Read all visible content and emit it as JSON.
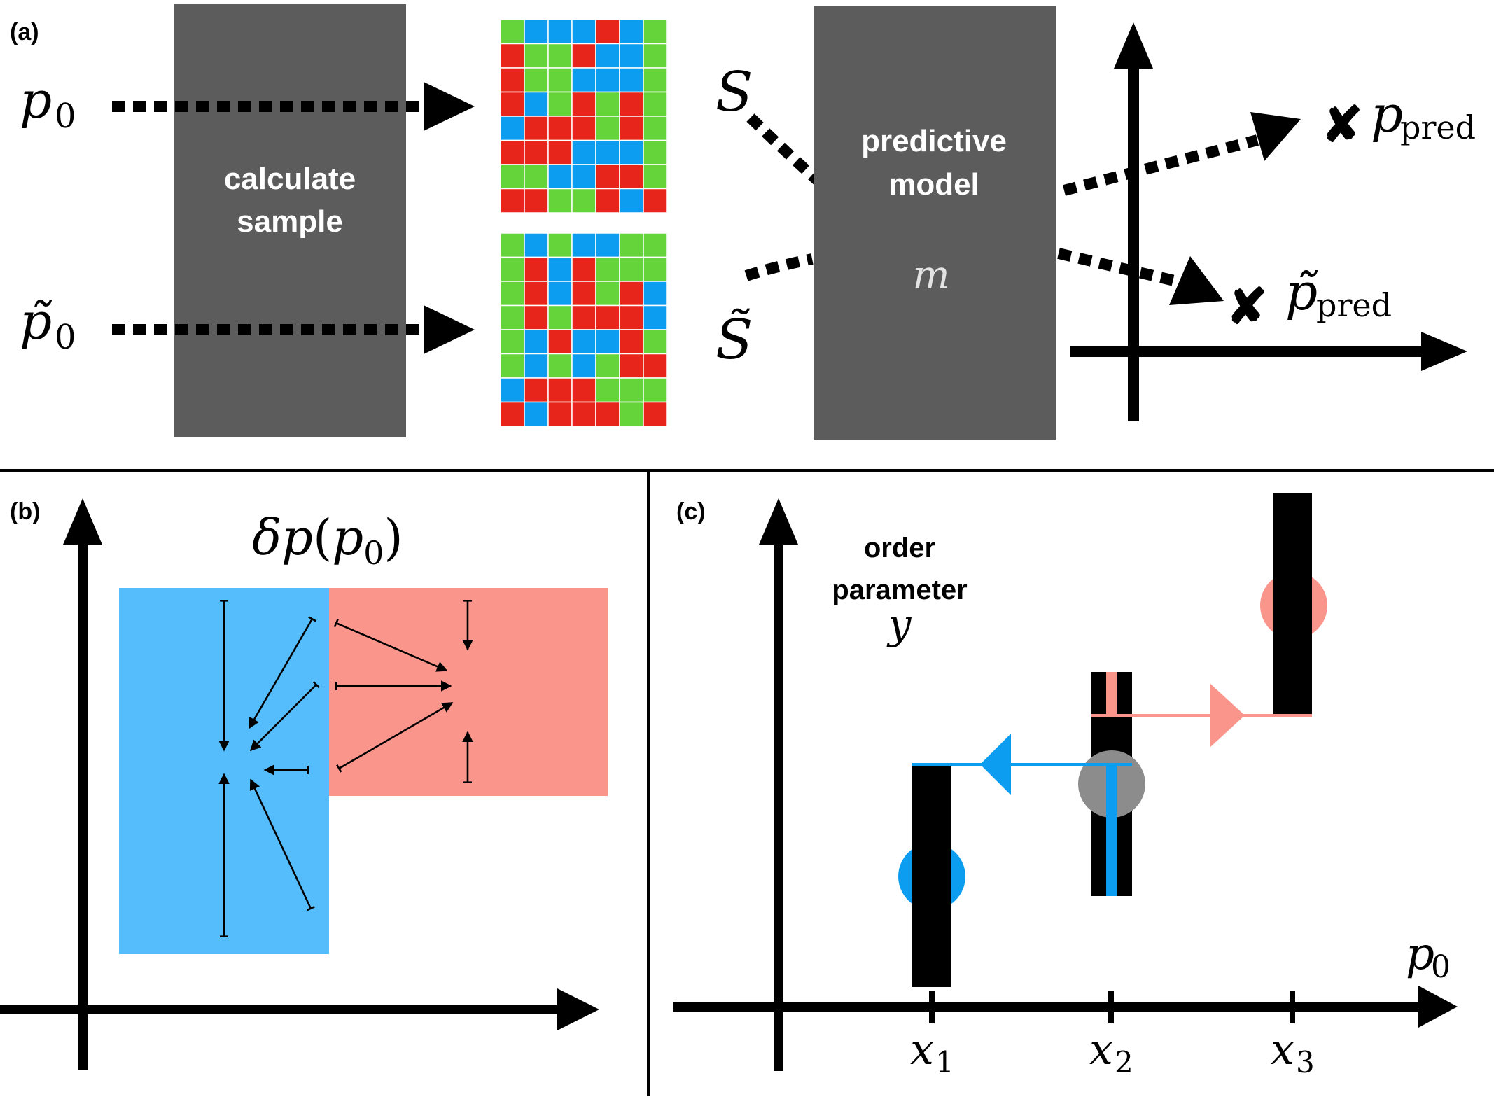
{
  "panels": {
    "a": {
      "tag": "(a)"
    },
    "b": {
      "tag": "(b)"
    },
    "c": {
      "tag": "(c)"
    }
  },
  "a": {
    "input_top": {
      "base": "p",
      "sub": "0"
    },
    "input_bottom": {
      "base": "p̃",
      "sub": "0"
    },
    "calc_box": {
      "line1": "calculate",
      "line2": "sample"
    },
    "sample_top_label": "S",
    "sample_bottom_label": "S̃",
    "model_box": {
      "line1": "predictive",
      "line2": "model",
      "symbol": "m"
    },
    "pred_top": {
      "base": "p",
      "sub": "pred"
    },
    "pred_bottom": {
      "base": "p̃",
      "sub": "pred"
    },
    "pred_marker": "✘",
    "colors": {
      "red": "#e8251b",
      "green": "#64d43a",
      "blue": "#0c9cf0",
      "box": "#5c5c5c"
    },
    "grid_top": [
      [
        "g",
        "b",
        "b",
        "b",
        "r",
        "b",
        "g"
      ],
      [
        "r",
        "g",
        "g",
        "r",
        "b",
        "b",
        "g"
      ],
      [
        "r",
        "g",
        "g",
        "b",
        "b",
        "b",
        "g"
      ],
      [
        "r",
        "b",
        "g",
        "r",
        "g",
        "r",
        "g"
      ],
      [
        "b",
        "r",
        "r",
        "r",
        "g",
        "r",
        "g"
      ],
      [
        "r",
        "r",
        "r",
        "b",
        "b",
        "b",
        "g"
      ],
      [
        "g",
        "g",
        "b",
        "b",
        "r",
        "r",
        "g"
      ],
      [
        "r",
        "r",
        "g",
        "g",
        "r",
        "b",
        "r"
      ]
    ],
    "grid_bottom": [
      [
        "g",
        "b",
        "g",
        "b",
        "b",
        "g",
        "g"
      ],
      [
        "g",
        "r",
        "b",
        "r",
        "g",
        "g",
        "g"
      ],
      [
        "g",
        "r",
        "b",
        "r",
        "g",
        "r",
        "b"
      ],
      [
        "g",
        "r",
        "g",
        "r",
        "r",
        "r",
        "b"
      ],
      [
        "g",
        "b",
        "r",
        "b",
        "b",
        "r",
        "g"
      ],
      [
        "g",
        "b",
        "g",
        "b",
        "g",
        "r",
        "r"
      ],
      [
        "b",
        "r",
        "r",
        "r",
        "g",
        "g",
        "g"
      ],
      [
        "r",
        "b",
        "r",
        "r",
        "r",
        "g",
        "r"
      ]
    ]
  },
  "b": {
    "title": {
      "delta": "δ",
      "base": "p",
      "open": "(",
      "inner": "p",
      "sub": "0",
      "close": ")"
    },
    "colors": {
      "blue_region": "#56bdfc",
      "red_region": "#fa958c"
    }
  },
  "c": {
    "ylabel": {
      "line1": "order",
      "line2": "parameter",
      "symbol": "y"
    },
    "xlabel": {
      "base": "p",
      "sub": "0"
    },
    "ticks": [
      {
        "base": "x",
        "sub": "1"
      },
      {
        "base": "x",
        "sub": "2"
      },
      {
        "base": "x",
        "sub": "3"
      }
    ],
    "colors": {
      "blue": "#0c9cf0",
      "red": "#fa958c",
      "gray": "#8c8c8c"
    }
  }
}
